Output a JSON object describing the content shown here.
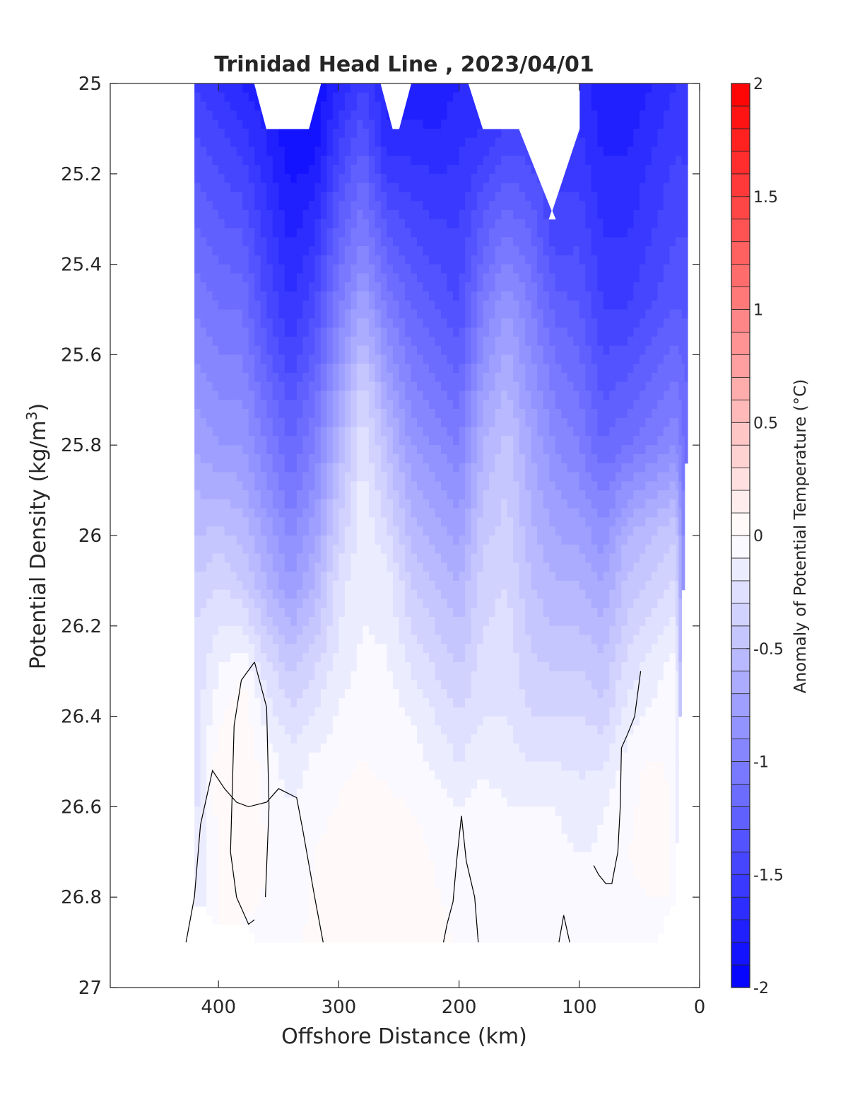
{
  "chart_data": {
    "type": "heatmap",
    "title": "Trinidad Head Line , 2023/04/01",
    "xlabel": "Offshore Distance (km)",
    "ylabel_main": "Potential Density (kg/m",
    "ylabel_sup": "3",
    "ylabel_close": ")",
    "colorbar_label": "Anomaly of Potential Temperature (°C)",
    "xlim": [
      490,
      0
    ],
    "ylim": [
      25,
      27
    ],
    "x_reversed": true,
    "y_reversed": true,
    "xticks": [
      400,
      300,
      200,
      100,
      0
    ],
    "xtick_labels": [
      "400",
      "300",
      "200",
      "100",
      "0"
    ],
    "yticks": [
      25,
      25.2,
      25.4,
      25.6,
      25.8,
      26,
      26.2,
      26.4,
      26.6,
      26.8,
      27
    ],
    "ytick_labels": [
      "25",
      "25.2",
      "25.4",
      "25.6",
      "25.8",
      "26",
      "26.2",
      "26.4",
      "26.6",
      "26.8",
      "27"
    ],
    "colorbar_range": [
      -2,
      2
    ],
    "colorbar_ticks": [
      2,
      1.5,
      1,
      0.5,
      0,
      -0.5,
      -1,
      -1.5,
      -2
    ],
    "colorbar_tick_labels": [
      "2",
      "1.5",
      "1",
      "0.5",
      "0",
      "-0.5",
      "-1",
      "-1.5",
      "-2"
    ],
    "colorbar_levels": 40,
    "colors": {
      "negative": "#0000ff",
      "neutral": "#ffffff",
      "positive": "#ff0000",
      "contour": "#000000"
    },
    "station_x": [
      420,
      400,
      380,
      360,
      340,
      320,
      300,
      280,
      260,
      240,
      220,
      200,
      180,
      160,
      140,
      120,
      100,
      80,
      60,
      40,
      20,
      10
    ],
    "profiles": [
      {
        "x": 420,
        "bottom": 26.8,
        "pts": [
          [
            25.0,
            -1.5
          ],
          [
            25.5,
            -1.0
          ],
          [
            25.8,
            -0.7
          ],
          [
            26.2,
            -0.3
          ],
          [
            26.8,
            -0.2
          ]
        ]
      },
      {
        "x": 400,
        "bottom": 26.85,
        "pts": [
          [
            25.0,
            -1.6
          ],
          [
            25.5,
            -1.1
          ],
          [
            25.8,
            -0.8
          ],
          [
            26.1,
            -0.3
          ],
          [
            26.3,
            -0.1
          ],
          [
            26.5,
            0.05
          ],
          [
            26.85,
            0.0
          ]
        ]
      },
      {
        "x": 380,
        "bottom": 26.85,
        "pts": [
          [
            25.0,
            -1.7
          ],
          [
            25.5,
            -1.1
          ],
          [
            25.8,
            -0.8
          ],
          [
            26.1,
            -0.4
          ],
          [
            26.3,
            0.0
          ],
          [
            26.45,
            0.1
          ],
          [
            26.7,
            0.1
          ],
          [
            26.85,
            0.0
          ]
        ]
      },
      {
        "x": 360,
        "bottom": 26.9,
        "pts": [
          [
            25.0,
            -1.8
          ],
          [
            25.5,
            -1.4
          ],
          [
            25.8,
            -1.0
          ],
          [
            26.1,
            -0.6
          ],
          [
            26.3,
            -0.25
          ],
          [
            26.5,
            -0.05
          ],
          [
            26.7,
            0.0
          ],
          [
            26.9,
            -0.02
          ]
        ]
      },
      {
        "x": 340,
        "bottom": 26.9,
        "pts": [
          [
            25.1,
            -1.9
          ],
          [
            25.5,
            -1.6
          ],
          [
            25.8,
            -1.2
          ],
          [
            26.1,
            -0.8
          ],
          [
            26.3,
            -0.4
          ],
          [
            26.5,
            -0.15
          ],
          [
            26.7,
            -0.05
          ],
          [
            26.9,
            -0.02
          ]
        ]
      },
      {
        "x": 320,
        "bottom": 26.9,
        "pts": [
          [
            25.1,
            -1.9
          ],
          [
            25.5,
            -1.4
          ],
          [
            25.8,
            -1.0
          ],
          [
            26.1,
            -0.6
          ],
          [
            26.3,
            -0.3
          ],
          [
            26.5,
            -0.08
          ],
          [
            26.7,
            0.0
          ],
          [
            26.9,
            0.02
          ]
        ]
      },
      {
        "x": 300,
        "bottom": 26.9,
        "pts": [
          [
            25.0,
            -1.7
          ],
          [
            25.5,
            -1.0
          ],
          [
            25.8,
            -0.6
          ],
          [
            26.1,
            -0.25
          ],
          [
            26.3,
            -0.15
          ],
          [
            26.5,
            -0.03
          ],
          [
            26.7,
            0.05
          ],
          [
            26.9,
            0.05
          ]
        ]
      },
      {
        "x": 280,
        "bottom": 26.9,
        "pts": [
          [
            25.0,
            -1.5
          ],
          [
            25.4,
            -0.9
          ],
          [
            25.7,
            -0.3
          ],
          [
            25.9,
            -0.15
          ],
          [
            26.2,
            -0.1
          ],
          [
            26.5,
            0.0
          ],
          [
            26.7,
            0.08
          ],
          [
            26.9,
            0.05
          ]
        ]
      },
      {
        "x": 260,
        "bottom": 26.9,
        "pts": [
          [
            25.1,
            -1.7
          ],
          [
            25.5,
            -1.0
          ],
          [
            25.8,
            -0.5
          ],
          [
            26.1,
            -0.15
          ],
          [
            26.5,
            -0.02
          ],
          [
            26.7,
            0.06
          ],
          [
            26.9,
            0.06
          ]
        ]
      },
      {
        "x": 240,
        "bottom": 26.9,
        "pts": [
          [
            25.0,
            -1.8
          ],
          [
            25.5,
            -1.2
          ],
          [
            25.8,
            -0.8
          ],
          [
            26.1,
            -0.4
          ],
          [
            26.4,
            -0.1
          ],
          [
            26.7,
            0.05
          ],
          [
            26.9,
            0.1
          ]
        ]
      },
      {
        "x": 220,
        "bottom": 26.9,
        "pts": [
          [
            25.0,
            -1.8
          ],
          [
            25.5,
            -1.3
          ],
          [
            25.8,
            -0.9
          ],
          [
            26.1,
            -0.5
          ],
          [
            26.4,
            -0.2
          ],
          [
            26.6,
            -0.05
          ],
          [
            26.9,
            0.05
          ]
        ]
      },
      {
        "x": 200,
        "bottom": 26.9,
        "pts": [
          [
            25.0,
            -1.7
          ],
          [
            25.5,
            -1.4
          ],
          [
            25.8,
            -1.0
          ],
          [
            26.1,
            -0.6
          ],
          [
            26.4,
            -0.3
          ],
          [
            26.6,
            -0.1
          ],
          [
            26.9,
            -0.02
          ]
        ]
      },
      {
        "x": 180,
        "bottom": 26.9,
        "pts": [
          [
            25.1,
            -1.6
          ],
          [
            25.5,
            -1.0
          ],
          [
            25.8,
            -0.6
          ],
          [
            26.1,
            -0.35
          ],
          [
            26.4,
            -0.2
          ],
          [
            26.6,
            -0.05
          ],
          [
            26.9,
            0.0
          ]
        ]
      },
      {
        "x": 160,
        "bottom": 26.9,
        "pts": [
          [
            25.1,
            -1.5
          ],
          [
            25.5,
            -0.8
          ],
          [
            25.8,
            -0.45
          ],
          [
            26.1,
            -0.3
          ],
          [
            26.4,
            -0.2
          ],
          [
            26.6,
            -0.1
          ],
          [
            26.9,
            -0.02
          ]
        ]
      },
      {
        "x": 140,
        "bottom": 26.9,
        "pts": [
          [
            25.1,
            -1.5
          ],
          [
            25.5,
            -1.0
          ],
          [
            25.8,
            -0.7
          ],
          [
            26.1,
            -0.5
          ],
          [
            26.4,
            -0.3
          ],
          [
            26.6,
            -0.1
          ],
          [
            26.9,
            -0.02
          ]
        ]
      },
      {
        "x": 120,
        "bottom": 26.9,
        "pts": [
          [
            25.3,
            -1.5
          ],
          [
            25.6,
            -1.1
          ],
          [
            25.9,
            -0.8
          ],
          [
            26.2,
            -0.5
          ],
          [
            26.4,
            -0.3
          ],
          [
            26.6,
            -0.1
          ],
          [
            26.9,
            0.0
          ]
        ]
      },
      {
        "x": 100,
        "bottom": 26.9,
        "pts": [
          [
            25.1,
            -1.6
          ],
          [
            25.5,
            -1.3
          ],
          [
            25.8,
            -1.0
          ],
          [
            26.1,
            -0.6
          ],
          [
            26.4,
            -0.3
          ],
          [
            26.6,
            -0.15
          ],
          [
            26.9,
            -0.02
          ]
        ]
      },
      {
        "x": 80,
        "bottom": 26.9,
        "pts": [
          [
            25.0,
            -1.8
          ],
          [
            25.5,
            -1.5
          ],
          [
            25.8,
            -1.2
          ],
          [
            26.1,
            -0.7
          ],
          [
            26.4,
            -0.35
          ],
          [
            26.6,
            -0.1
          ],
          [
            26.9,
            -0.05
          ]
        ]
      },
      {
        "x": 60,
        "bottom": 26.9,
        "pts": [
          [
            25.0,
            -1.8
          ],
          [
            25.5,
            -1.5
          ],
          [
            25.8,
            -1.1
          ],
          [
            26.0,
            -0.6
          ],
          [
            26.3,
            -0.25
          ],
          [
            26.5,
            -0.05
          ],
          [
            26.7,
            0.0
          ],
          [
            26.9,
            -0.02
          ]
        ]
      },
      {
        "x": 40,
        "bottom": 26.9,
        "pts": [
          [
            25.0,
            -1.7
          ],
          [
            25.5,
            -1.4
          ],
          [
            25.8,
            -1.0
          ],
          [
            26.0,
            -0.5
          ],
          [
            26.3,
            -0.15
          ],
          [
            26.55,
            0.05
          ],
          [
            26.8,
            0.0
          ],
          [
            26.9,
            -0.02
          ]
        ]
      },
      {
        "x": 20,
        "bottom": 26.8,
        "pts": [
          [
            25.0,
            -1.6
          ],
          [
            25.5,
            -1.3
          ],
          [
            25.8,
            -0.9
          ],
          [
            26.0,
            -0.4
          ],
          [
            26.3,
            -0.05
          ],
          [
            26.8,
            0.0
          ]
        ]
      },
      {
        "x": 10,
        "bottom": 25.7,
        "pts": [
          [
            25.0,
            -1.6
          ],
          [
            25.7,
            -1.2
          ]
        ]
      }
    ],
    "missing_regions": [
      [
        [
          370,
          25.0
        ],
        [
          315,
          25.0
        ],
        [
          325,
          25.1
        ],
        [
          360,
          25.1
        ]
      ],
      [
        [
          265,
          25.0
        ],
        [
          240,
          25.0
        ],
        [
          250,
          25.1
        ],
        [
          255,
          25.1
        ]
      ],
      [
        [
          192,
          25.0
        ],
        [
          100,
          25.0
        ],
        [
          100,
          25.1
        ],
        [
          125,
          25.3
        ],
        [
          120,
          25.3
        ],
        [
          150,
          25.1
        ],
        [
          180,
          25.1
        ]
      ]
    ],
    "zero_contours": [
      [
        [
          370,
          26.28
        ],
        [
          381,
          26.32
        ],
        [
          387,
          26.42
        ],
        [
          390,
          26.7
        ],
        [
          385,
          26.8
        ],
        [
          375,
          26.86
        ],
        [
          370,
          26.85
        ]
      ],
      [
        [
          370,
          26.28
        ],
        [
          360,
          26.38
        ],
        [
          358,
          26.6
        ],
        [
          361,
          26.8
        ]
      ],
      [
        [
          313,
          26.9
        ],
        [
          320,
          26.8
        ],
        [
          330,
          26.65
        ],
        [
          335,
          26.58
        ],
        [
          350,
          26.56
        ],
        [
          360,
          26.59
        ],
        [
          375,
          26.6
        ],
        [
          385,
          26.59
        ],
        [
          395,
          26.56
        ],
        [
          405,
          26.52
        ],
        [
          415,
          26.64
        ],
        [
          420,
          26.8
        ],
        [
          427,
          26.9
        ]
      ],
      [
        [
          184,
          26.9
        ],
        [
          187,
          26.8
        ],
        [
          194,
          26.72
        ],
        [
          198,
          26.62
        ],
        [
          202,
          26.72
        ],
        [
          205,
          26.81
        ],
        [
          210,
          26.86
        ],
        [
          213,
          26.9
        ]
      ],
      [
        [
          108,
          26.9
        ],
        [
          113,
          26.84
        ],
        [
          117,
          26.9
        ]
      ],
      [
        [
          49,
          26.3
        ],
        [
          54,
          26.4
        ],
        [
          60,
          26.44
        ],
        [
          65,
          26.47
        ],
        [
          66,
          26.6
        ],
        [
          68,
          26.7
        ],
        [
          73,
          26.77
        ],
        [
          78,
          26.77
        ],
        [
          84,
          26.75
        ],
        [
          88,
          26.73
        ]
      ]
    ]
  }
}
